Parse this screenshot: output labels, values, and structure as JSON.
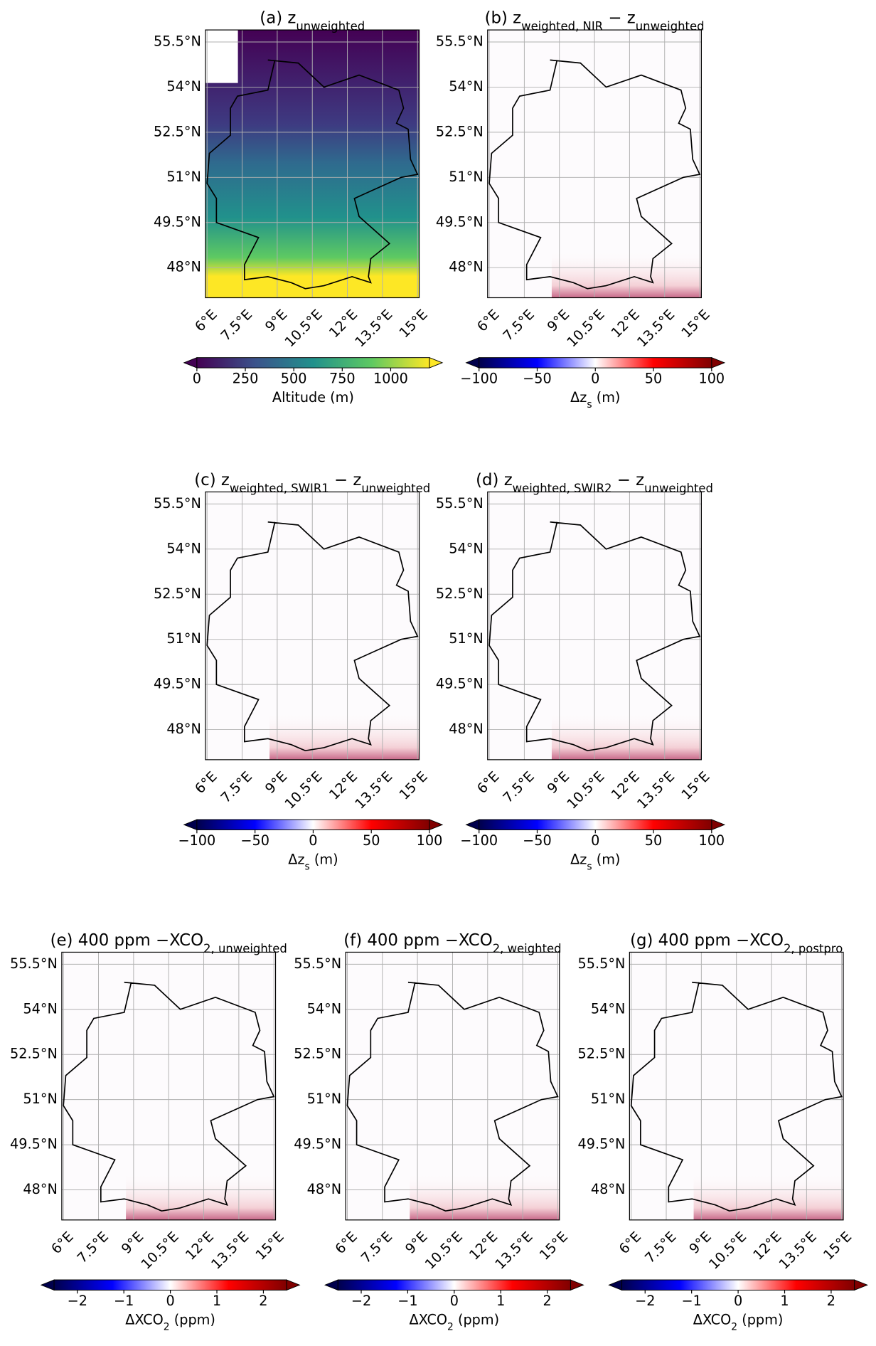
{
  "map_axes": {
    "lonlim": [
      5.93,
      15.07
    ],
    "latlim": [
      47.0,
      55.9
    ],
    "lon_ticks": [
      {
        "value": 6,
        "label": "6°E"
      },
      {
        "value": 7.5,
        "label": "7.5°E"
      },
      {
        "value": 9,
        "label": "9°E"
      },
      {
        "value": 10.5,
        "label": "10.5°E"
      },
      {
        "value": 12,
        "label": "12°E"
      },
      {
        "value": 13.5,
        "label": "13.5°E"
      },
      {
        "value": 15,
        "label": "15°E"
      }
    ],
    "lat_ticks": [
      {
        "value": 48,
        "label": "48°N"
      },
      {
        "value": 49.5,
        "label": "49.5°N"
      },
      {
        "value": 51,
        "label": "51°N"
      },
      {
        "value": 52.5,
        "label": "52.5°N"
      },
      {
        "value": 54,
        "label": "54°N"
      },
      {
        "value": 55.5,
        "label": "55.5°N"
      }
    ],
    "grid": true
  },
  "panels": [
    {
      "title": [
        {
          "t": "(a) z"
        },
        {
          "t": "unweighted",
          "sub": true
        }
      ],
      "cmap": "viridis",
      "clim": [
        0,
        1200
      ],
      "cticks": [
        0,
        250,
        500,
        750,
        1000
      ],
      "clabel": [
        {
          "t": "Altitude (m)"
        }
      ]
    },
    {
      "title": [
        {
          "t": "(b) z"
        },
        {
          "t": "weighted, NIR",
          "sub": true
        },
        {
          "t": " − z"
        },
        {
          "t": "unweighted",
          "sub": true
        }
      ],
      "cmap": "seismic",
      "clim": [
        -100,
        100
      ],
      "cticks": [
        {
          "value": -100,
          "label": "−100"
        },
        {
          "value": -50,
          "label": "−50"
        },
        0,
        50,
        100
      ],
      "clabel": [
        {
          "t": "Δz"
        },
        {
          "t": "s",
          "sub": true
        },
        {
          "t": "  (m)"
        }
      ]
    },
    {
      "title": [
        {
          "t": "(c) z"
        },
        {
          "t": "weighted, SWIR1",
          "sub": true
        },
        {
          "t": " − z"
        },
        {
          "t": "unweighted",
          "sub": true
        }
      ],
      "cmap": "seismic",
      "clim": [
        -100,
        100
      ],
      "cticks": [
        {
          "value": -100,
          "label": "−100"
        },
        {
          "value": -50,
          "label": "−50"
        },
        0,
        50,
        100
      ],
      "clabel": [
        {
          "t": "Δz"
        },
        {
          "t": "s",
          "sub": true
        },
        {
          "t": " (m)"
        }
      ]
    },
    {
      "title": [
        {
          "t": "(d) z"
        },
        {
          "t": "weighted, SWIR2",
          "sub": true
        },
        {
          "t": " − z"
        },
        {
          "t": "unweighted",
          "sub": true
        }
      ],
      "cmap": "seismic",
      "clim": [
        -100,
        100
      ],
      "cticks": [
        {
          "value": -100,
          "label": "−100"
        },
        {
          "value": -50,
          "label": "−50"
        },
        0,
        50,
        100
      ],
      "clabel": [
        {
          "t": "Δz"
        },
        {
          "t": "s",
          "sub": true
        },
        {
          "t": " (m)"
        }
      ]
    },
    {
      "title": [
        {
          "t": "(e) 400 ppm −XCO"
        },
        {
          "t": "2, unweighted",
          "sub": true
        }
      ],
      "cmap": "seismic",
      "clim": [
        -2.5,
        2.5
      ],
      "cticks": [
        {
          "value": -2,
          "label": "−2"
        },
        {
          "value": -1,
          "label": "−1"
        },
        0,
        1,
        2
      ],
      "clabel": [
        {
          "t": "ΔXCO"
        },
        {
          "t": "2",
          "sub": true
        },
        {
          "t": " (ppm)"
        }
      ]
    },
    {
      "title": [
        {
          "t": "(f) 400 ppm −XCO"
        },
        {
          "t": "2, weighted",
          "sub": true
        }
      ],
      "cmap": "seismic",
      "clim": [
        -2.5,
        2.5
      ],
      "cticks": [
        {
          "value": -2,
          "label": "−2"
        },
        {
          "value": -1,
          "label": "−1"
        },
        0,
        1,
        2
      ],
      "clabel": [
        {
          "t": "ΔXCO"
        },
        {
          "t": "2",
          "sub": true
        },
        {
          "t": " (ppm)"
        }
      ]
    },
    {
      "title": [
        {
          "t": "(g) 400 ppm −XCO"
        },
        {
          "t": "2, postpro",
          "sub": true
        }
      ],
      "cmap": "seismic",
      "clim": [
        -2.5,
        2.5
      ],
      "cticks": [
        {
          "value": -2,
          "label": "−2"
        },
        {
          "value": -1,
          "label": "−1"
        },
        0,
        1,
        2
      ],
      "clabel": [
        {
          "t": "ΔXCO"
        },
        {
          "t": "2",
          "sub": true
        },
        {
          "t": " (ppm)"
        }
      ]
    }
  ]
}
